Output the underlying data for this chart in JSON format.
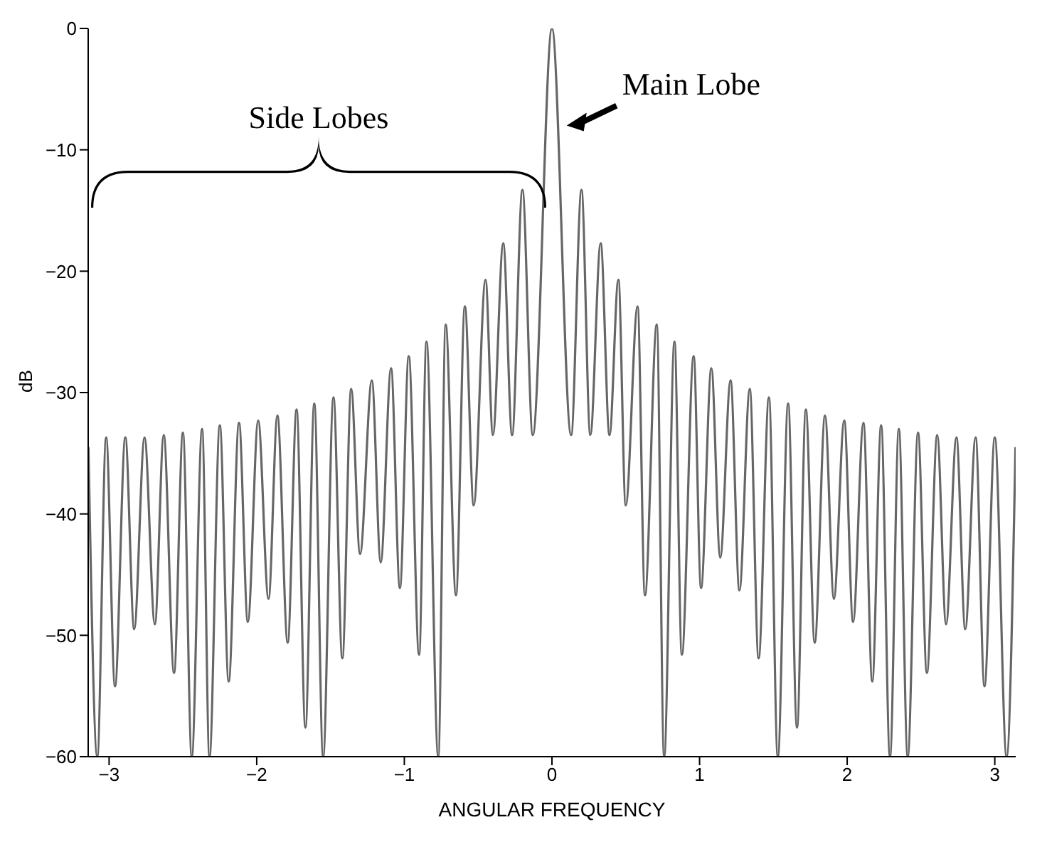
{
  "chart_data": {
    "type": "line",
    "xlabel": "ANGULAR FREQUENCY",
    "ylabel": "dB",
    "x": [
      -3.14,
      -3.08,
      -3.02,
      -2.96,
      -2.89,
      -2.83,
      -2.76,
      -2.69,
      -2.63,
      -2.56,
      -2.5,
      -2.44,
      -2.37,
      -2.32,
      -2.25,
      -2.19,
      -2.12,
      -2.06,
      -1.99,
      -1.92,
      -1.86,
      -1.79,
      -1.73,
      -1.67,
      -1.61,
      -1.55,
      -1.48,
      -1.42,
      -1.36,
      -1.3,
      -1.22,
      -1.16,
      -1.09,
      -1.03,
      -0.97,
      -0.9,
      -0.85,
      -0.77,
      -0.72,
      -0.65,
      -0.59,
      -0.53,
      -0.45,
      -0.4,
      -0.33,
      -0.27,
      -0.2,
      -0.13,
      0,
      0.13,
      0.2,
      0.26,
      0.33,
      0.39,
      0.45,
      0.5,
      0.58,
      0.63,
      0.71,
      0.76,
      0.83,
      0.88,
      0.96,
      1.01,
      1.08,
      1.14,
      1.21,
      1.27,
      1.34,
      1.4,
      1.47,
      1.53,
      1.6,
      1.66,
      1.72,
      1.78,
      1.85,
      1.91,
      1.98,
      2.04,
      2.11,
      2.17,
      2.23,
      2.29,
      2.35,
      2.41,
      2.48,
      2.54,
      2.61,
      2.67,
      2.74,
      2.8,
      2.87,
      2.93,
      3,
      3.08,
      3.14
    ],
    "series": [
      {
        "color": "#666666",
        "values": [
          -34.5,
          -60,
          -33.7,
          -54.2,
          -33.7,
          -49.5,
          -33.7,
          -49.1,
          -33.5,
          -53.1,
          -33.3,
          -60,
          -33,
          -60,
          -32.7,
          -53.8,
          -32.5,
          -48.9,
          -32.3,
          -47,
          -31.9,
          -50.6,
          -31.4,
          -57.6,
          -30.9,
          -60,
          -30.4,
          -51.9,
          -29.7,
          -43.3,
          -29,
          -44,
          -28,
          -46.1,
          -27,
          -51.6,
          -25.8,
          -60,
          -24.4,
          -46.7,
          -22.9,
          -39.3,
          -20.7,
          -33.5,
          -17.7,
          -33.5,
          -13.3,
          -33.5,
          0,
          -33.5,
          -13.3,
          -33.5,
          -17.7,
          -33.5,
          -20.7,
          -39.3,
          -22.9,
          -46.7,
          -24.4,
          -60,
          -25.8,
          -51.6,
          -27,
          -46.1,
          -28,
          -43.6,
          -29,
          -46.3,
          -29.7,
          -51.9,
          -30.4,
          -60,
          -30.9,
          -57.6,
          -31.4,
          -50.6,
          -31.9,
          -47,
          -32.3,
          -48.9,
          -32.5,
          -53.8,
          -32.7,
          -60,
          -33,
          -60,
          -33.3,
          -53.1,
          -33.5,
          -49.1,
          -33.7,
          -49.5,
          -33.7,
          -54.2,
          -33.7,
          -60,
          -34.5
        ]
      }
    ],
    "xlim": [
      -3.1416,
      3.1416
    ],
    "xticks": [
      -3,
      -2,
      -1,
      0,
      1,
      2,
      3
    ],
    "ylim": [
      -60,
      0
    ],
    "yticks": [
      -60,
      -50,
      -40,
      -30,
      -20,
      -10,
      0
    ],
    "grid": false,
    "legend": false,
    "marker": "none",
    "line_style": "solid",
    "annotations": [
      "Side Lobes",
      {
        "text": "Main Lobe",
        "x": 0.1,
        "y": -8
      }
    ]
  }
}
